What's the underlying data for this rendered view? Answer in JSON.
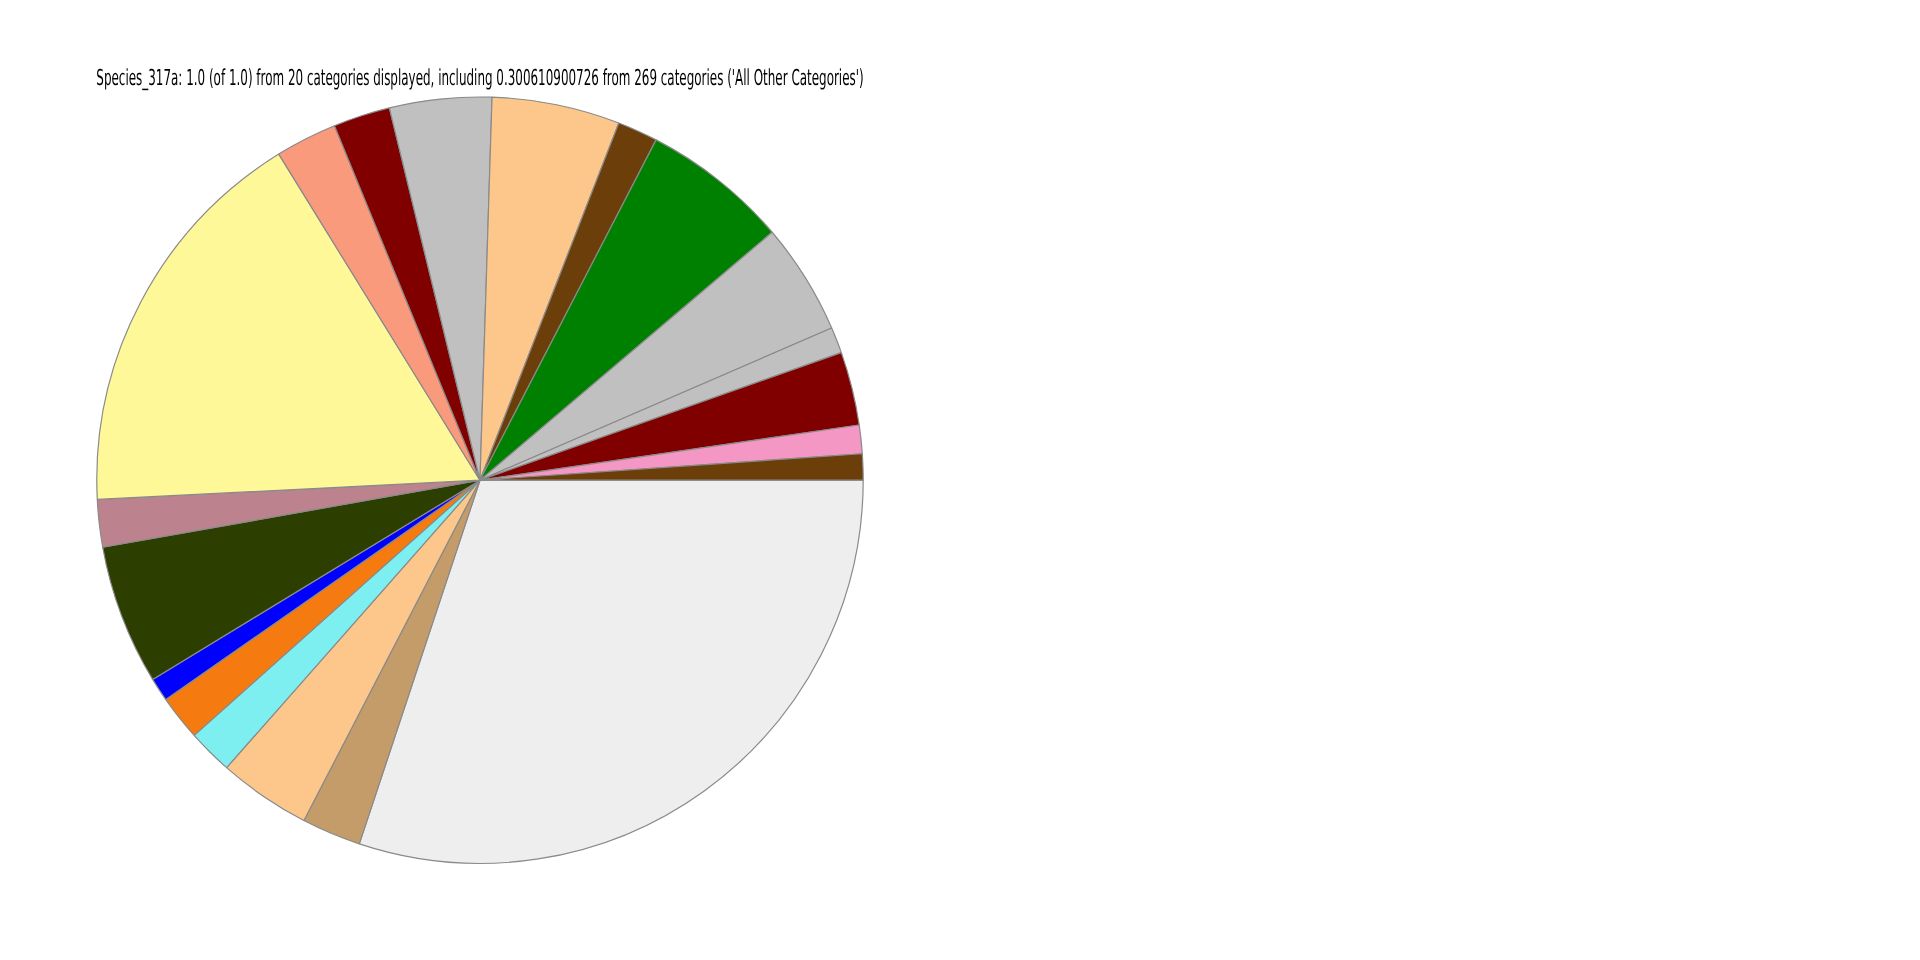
{
  "chart_data": {
    "type": "pie",
    "title": "Species_317a: 1.0 (of 1.0) from 20 categories displayed, including 0.300610900726 from 269 categories ('All Other Categories')",
    "categories": [
      null,
      null,
      null,
      null,
      null,
      null,
      null,
      null,
      null,
      null,
      null,
      null,
      null,
      null,
      null,
      null,
      null,
      null,
      null,
      null
    ],
    "values": [
      1.1,
      1.2,
      3.1,
      1.1,
      4.7,
      6.2,
      1.7,
      5.4,
      4.3,
      2.4,
      2.6,
      17.0,
      2.0,
      5.9,
      1.0,
      1.9,
      1.9,
      3.9,
      2.5,
      30.1
    ],
    "colors": [
      "#6b3e0a",
      "#f497c4",
      "#800000",
      "#c0c0c0",
      "#c0c0c0",
      "#008000",
      "#6b3e0a",
      "#fdc78b",
      "#c0c0c0",
      "#800000",
      "#fa9a7d",
      "#fff899",
      "#bc838f",
      "#2c3e00",
      "#0000ff",
      "#f57a10",
      "#7eeff0",
      "#fdc78b",
      "#c49c6a",
      "#eeeeee"
    ],
    "legend": false
  }
}
